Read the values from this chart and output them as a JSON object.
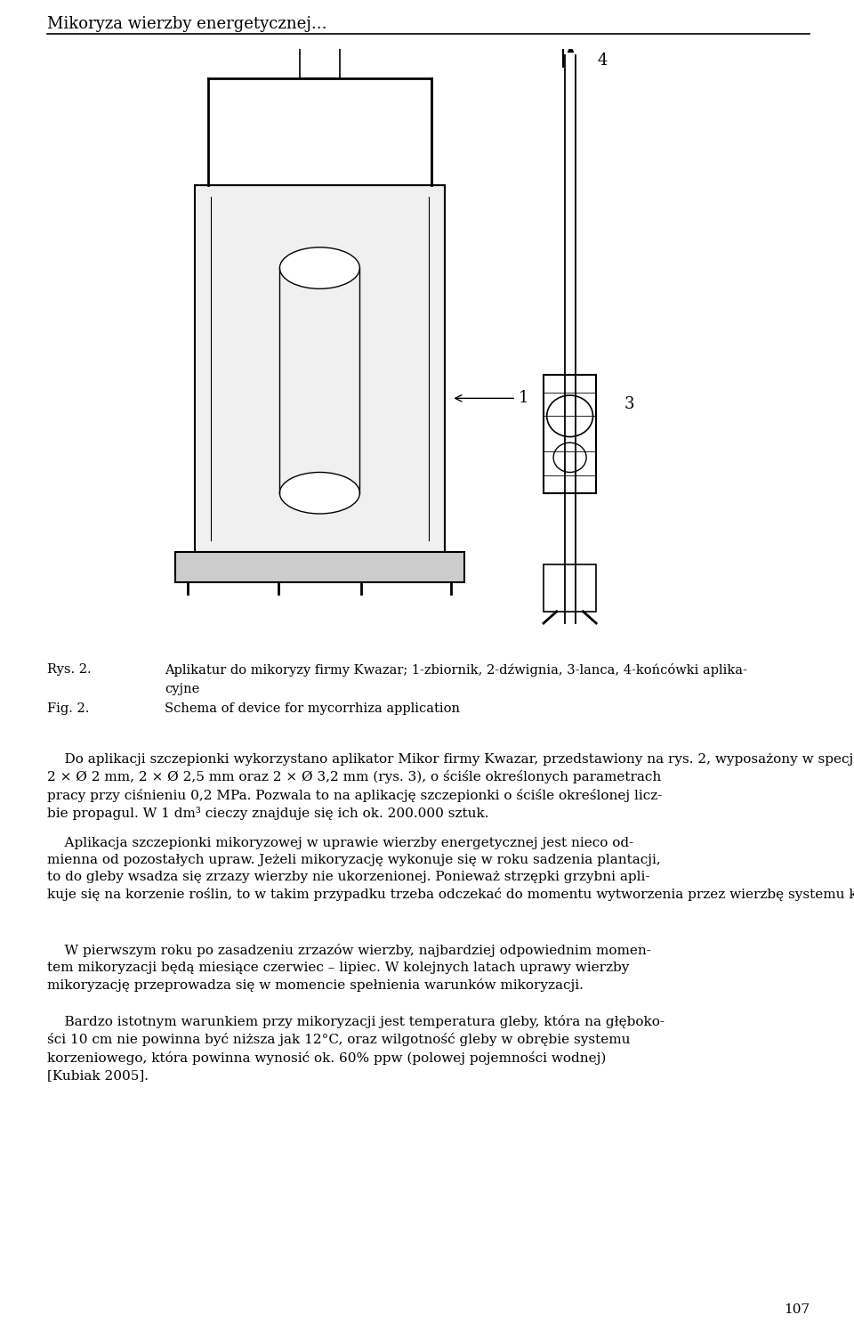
{
  "header_text": "Mikoryza wierzby energetycznej...",
  "page_number": "107",
  "caption_rys_label": "Rys. 2.",
  "caption_rys_text": "Aplikatur do mikoryzy firmy Kwazar; 1-zbiornik, 2-dźwignia, 3-lanca, 4-końcówki aplika-",
  "caption_rys_text2": "cyjne",
  "caption_fig_label": "Fig. 2.",
  "caption_fig_text": "Schema of device for mycorrhiza application",
  "body_paragraphs": [
    "    Do aplikacji szczepionki wykorzystano aplikator Mikor firmy Kwazar, przedstawiony na rys. 2, wyposażony w specjalistyczne końcówki dwuotworowe o średnicach\n2 × Ø 2 mm, 2 × Ø 2,5 mm oraz 2 × Ø 3,2 mm (rys. 3), o ściśle określonych parametrach\npracy przy ciśnieniu 0,2 MPa. Pozwala to na aplikację szczepionki o ściśle określonej licz-\nbie propagul. W 1 dm³ cieczy znajduje się ich ok. 200.000 sztuk.",
    "    Aplikacja szczepionki mikoryzowej w uprawie wierzby energetycznej jest nieco od-\nmienna od pozostałych upraw. Jeżeli mikoryzację wykonuje się w roku sadzenia plantacji,\nto do gleby wsadza się zrzazy wierzby nie ukorzenionej. Ponieważ strzępki grzybni apli-\nkuje się na korzenie roślin, to w takim przypadku trzeba odczekać do momentu wytworzenia przez wierzbę systemu korzeniowego.",
    "    W pierwszym roku po zasadzeniu zrzazów wierzby, najbardziej odpowiednim momen-\ntem mikoryzacji będą miesiące czerwiec – lipiec. W kolejnych latach uprawy wierzby\nmikoryzację przeprowadza się w momencie spełnienia warunków mikoryzacji.",
    "    Bardzo istotnym warunkiem przy mikoryzacji jest temperatura gleby, która na głęboko-\nści 10 cm nie powinna być niższa jak 12°C, oraz wilgotność gleby w obrębie systemu\nkorzeniowego, która powinna wynosić ok. 60% ppw (polowej pojemności wodnej)\n[Kubiak 2005]."
  ],
  "bg_color": "#ffffff",
  "text_color": "#000000",
  "header_fontsize": 13,
  "caption_fontsize": 10.5,
  "body_fontsize": 11,
  "page_num_fontsize": 11
}
